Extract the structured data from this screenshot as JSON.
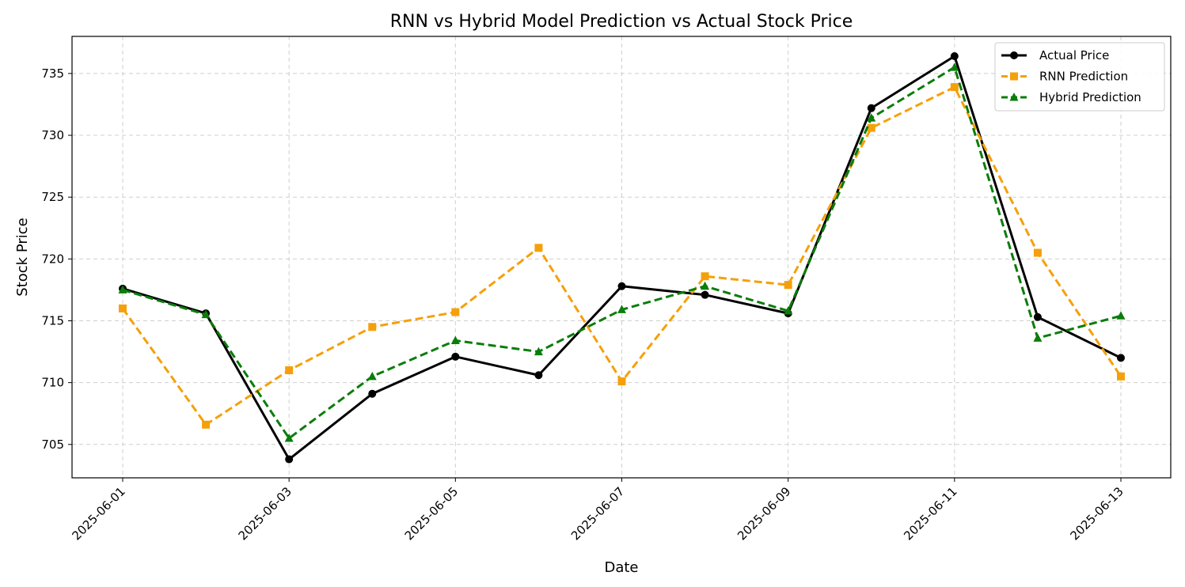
{
  "chart_data": {
    "type": "line",
    "title": "RNN vs Hybrid Model Prediction vs Actual Stock Price",
    "xlabel": "Date",
    "ylabel": "Stock Price",
    "x": [
      "2025-06-01",
      "2025-06-02",
      "2025-06-03",
      "2025-06-04",
      "2025-06-05",
      "2025-06-06",
      "2025-06-07",
      "2025-06-08",
      "2025-06-09",
      "2025-06-10",
      "2025-06-11",
      "2025-06-12",
      "2025-06-13"
    ],
    "xtick_labels": [
      "2025-06-01",
      "2025-06-03",
      "2025-06-05",
      "2025-06-07",
      "2025-06-09",
      "2025-06-11",
      "2025-06-13"
    ],
    "ytick_labels": [
      705,
      710,
      715,
      720,
      725,
      730,
      735
    ],
    "ylim": [
      702.3,
      738.0
    ],
    "grid": true,
    "legend_position": "top-right",
    "series": [
      {
        "name": "Actual Price",
        "color": "#000000",
        "line_style": "solid",
        "marker": "circle",
        "values": [
          717.6,
          715.6,
          703.8,
          709.1,
          712.1,
          710.6,
          717.8,
          717.1,
          715.6,
          732.2,
          736.4,
          715.3,
          712.0
        ]
      },
      {
        "name": "RNN Prediction",
        "color": "#f5a00a",
        "line_style": "dashed",
        "marker": "square",
        "values": [
          716.0,
          706.6,
          711.0,
          714.5,
          715.7,
          720.9,
          710.1,
          718.6,
          717.9,
          730.6,
          733.9,
          720.5,
          710.5
        ]
      },
      {
        "name": "Hybrid Prediction",
        "color": "#0a7d0a",
        "line_style": "dashed",
        "marker": "triangle",
        "values": [
          717.5,
          715.5,
          705.5,
          710.5,
          713.4,
          712.5,
          715.9,
          717.8,
          715.8,
          731.4,
          735.5,
          713.6,
          715.4
        ]
      }
    ]
  }
}
